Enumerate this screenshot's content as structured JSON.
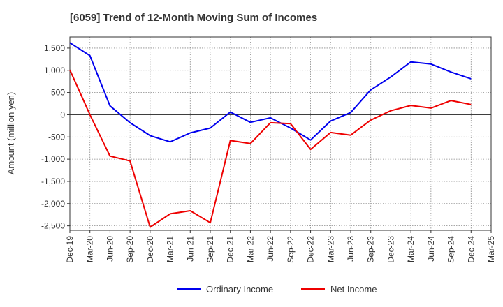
{
  "chart_data": {
    "type": "line",
    "title": "[6059]  Trend of 12-Month Moving Sum of Incomes",
    "ylabel": "Amount (million yen)",
    "xlabel": "",
    "ylim": [
      -2600,
      1750
    ],
    "yticks": [
      1500,
      1000,
      500,
      0,
      -500,
      -1000,
      -1500,
      -2000,
      -2500
    ],
    "ytick_labels": [
      "1,500",
      "1,000",
      "500",
      "0",
      "-500",
      "-1,000",
      "-1,500",
      "-2,000",
      "-2,500"
    ],
    "categories": [
      "Dec-19",
      "Mar-20",
      "Jun-20",
      "Sep-20",
      "Dec-20",
      "Mar-21",
      "Jun-21",
      "Sep-21",
      "Dec-21",
      "Mar-22",
      "Jun-22",
      "Sep-22",
      "Dec-22",
      "Mar-23",
      "Jun-23",
      "Sep-23",
      "Dec-23",
      "Mar-24",
      "Jun-24",
      "Sep-24",
      "Dec-24",
      "Mar-25"
    ],
    "grid": true,
    "legend_position": "bottom",
    "series": [
      {
        "name": "Ordinary Income",
        "color": "#0000ee",
        "values": [
          1620,
          1330,
          200,
          -180,
          -470,
          -610,
          -410,
          -300,
          60,
          -170,
          -70,
          -300,
          -570,
          -140,
          50,
          560,
          850,
          1190,
          1140,
          960,
          810,
          null
        ]
      },
      {
        "name": "Net Income",
        "color": "#ee0000",
        "values": [
          1010,
          0,
          -930,
          -1040,
          -2530,
          -2230,
          -2160,
          -2430,
          -580,
          -650,
          -180,
          -200,
          -780,
          -400,
          -460,
          -120,
          90,
          210,
          150,
          320,
          230,
          null
        ]
      }
    ]
  }
}
